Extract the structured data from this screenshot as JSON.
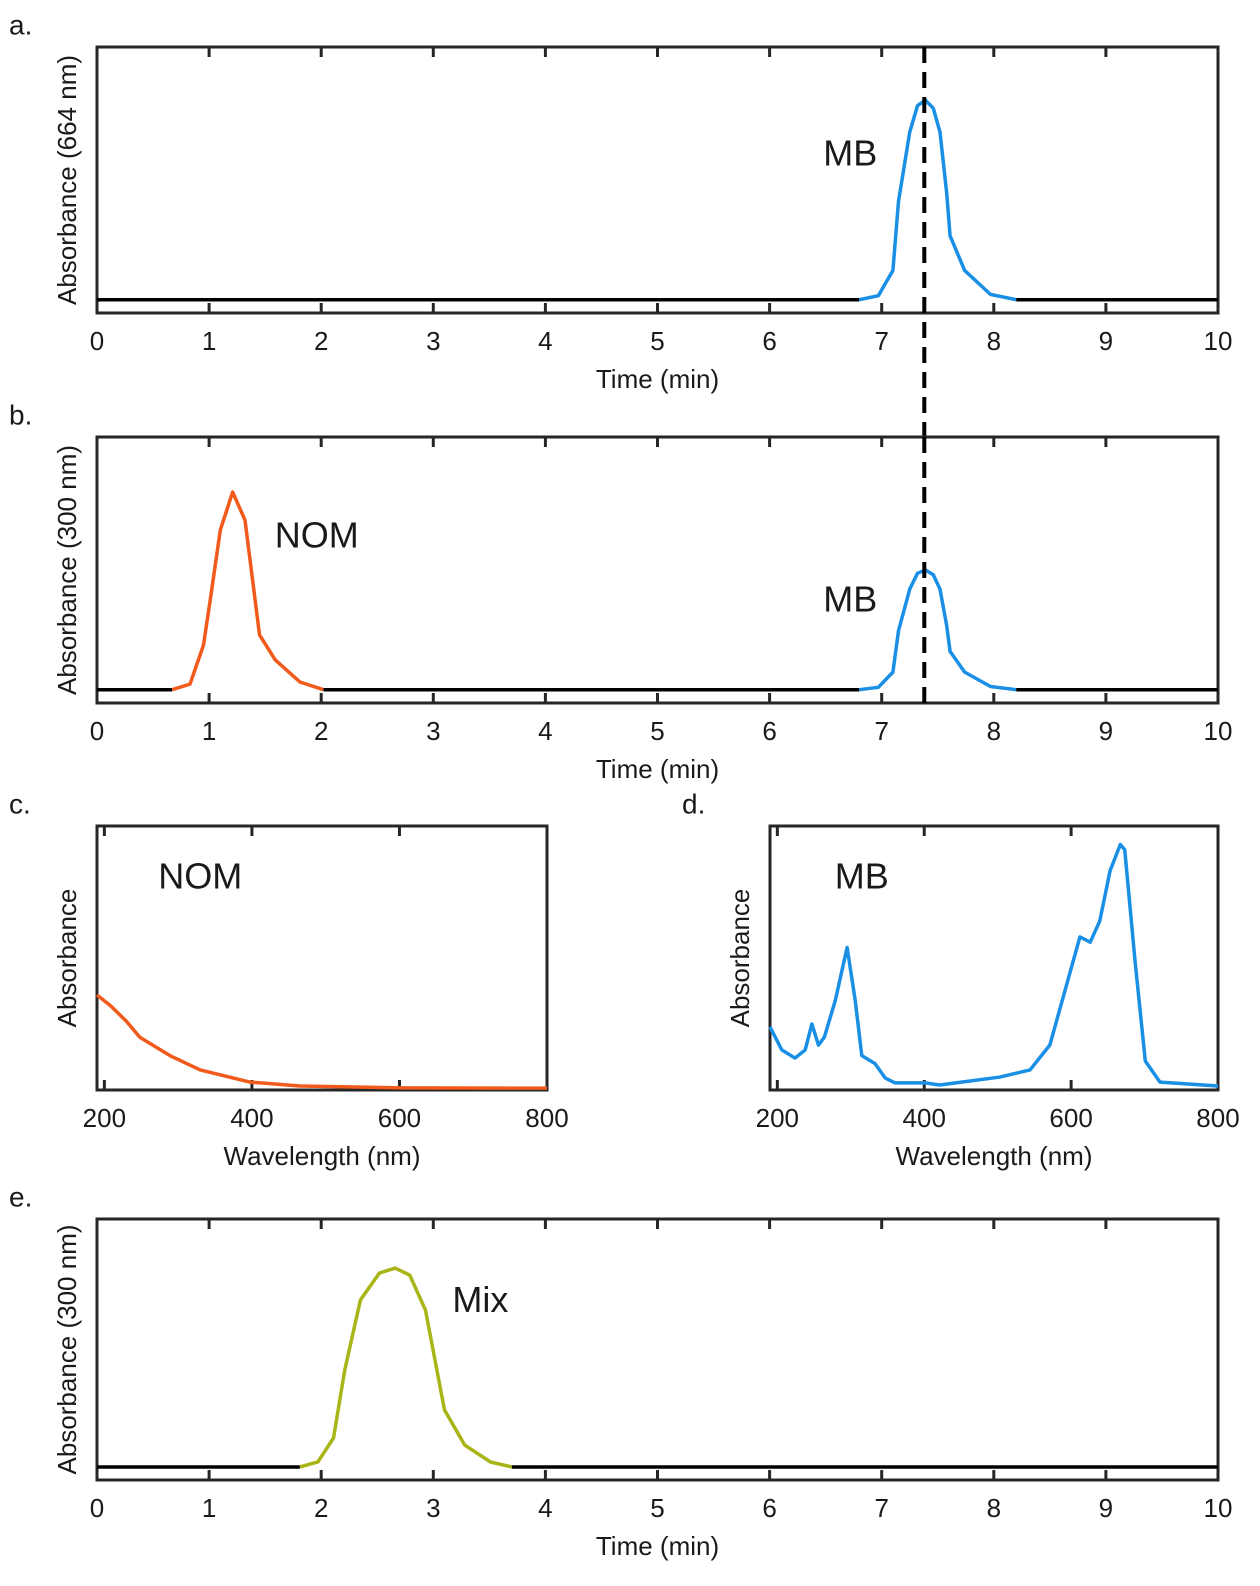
{
  "chart_data": [
    {
      "type": "line",
      "label": "a.",
      "xlabel": "Time (min)",
      "ylabel": "Absorbance (664 nm)",
      "xlim": [
        0,
        10
      ],
      "ylim": [
        0,
        1
      ],
      "xticks": [
        0,
        1,
        2,
        3,
        4,
        5,
        6,
        7,
        8,
        9,
        10
      ],
      "vline": 7.38,
      "series": [
        {
          "color": "#000000",
          "x": [
            0,
            6.8
          ],
          "values": [
            0.05,
            0.05
          ]
        },
        {
          "color": "#1a8fe6",
          "x": [
            6.8,
            6.97,
            7.1,
            7.15,
            7.25,
            7.32,
            7.39,
            7.46,
            7.52,
            7.58,
            7.61,
            7.74,
            7.97,
            8.2
          ],
          "values": [
            0.05,
            0.065,
            0.16,
            0.42,
            0.68,
            0.78,
            0.8,
            0.77,
            0.68,
            0.45,
            0.29,
            0.16,
            0.07,
            0.05
          ]
        },
        {
          "color": "#000000",
          "x": [
            8.2,
            10
          ],
          "values": [
            0.05,
            0.05
          ]
        }
      ],
      "annotations": [
        {
          "text": "MB",
          "x": 6.72,
          "y": 0.59
        }
      ]
    },
    {
      "type": "line",
      "label": "b.",
      "xlabel": "Time (min)",
      "ylabel": "Absorbance (300 nm)",
      "xlim": [
        0,
        10
      ],
      "ylim": [
        0,
        1
      ],
      "xticks": [
        0,
        1,
        2,
        3,
        4,
        5,
        6,
        7,
        8,
        9,
        10
      ],
      "vline": 7.38,
      "series": [
        {
          "color": "#000000",
          "x": [
            0,
            0.67
          ],
          "values": [
            0.05,
            0.05
          ]
        },
        {
          "color": "#f25a1c",
          "x": [
            0.67,
            0.83,
            0.95,
            1.01,
            1.1,
            1.21,
            1.32,
            1.45,
            1.59,
            1.81,
            2.02
          ],
          "values": [
            0.05,
            0.071,
            0.218,
            0.387,
            0.65,
            0.793,
            0.688,
            0.256,
            0.162,
            0.079,
            0.05
          ]
        },
        {
          "color": "#000000",
          "x": [
            2.02,
            6.8
          ],
          "values": [
            0.05,
            0.05
          ]
        },
        {
          "color": "#1a8fe6",
          "x": [
            6.8,
            6.97,
            7.1,
            7.15,
            7.25,
            7.32,
            7.39,
            7.46,
            7.52,
            7.58,
            7.61,
            7.74,
            7.97,
            8.2
          ],
          "values": [
            0.05,
            0.059,
            0.116,
            0.272,
            0.428,
            0.488,
            0.5,
            0.482,
            0.428,
            0.29,
            0.194,
            0.116,
            0.062,
            0.05
          ]
        },
        {
          "color": "#000000",
          "x": [
            8.2,
            10
          ],
          "values": [
            0.05,
            0.05
          ]
        }
      ],
      "annotations": [
        {
          "text": "NOM",
          "x": 1.96,
          "y": 0.62
        },
        {
          "text": "MB",
          "x": 6.72,
          "y": 0.38
        }
      ]
    },
    {
      "type": "line",
      "label": "c.",
      "xlabel": "Wavelength (nm)",
      "ylabel": "Absorbance",
      "xlim": [
        190,
        800
      ],
      "ylim": [
        0,
        1
      ],
      "xticks": [
        200,
        400,
        600,
        800
      ],
      "series": [
        {
          "color": "#f25a1c",
          "x": [
            190,
            208,
            230,
            248,
            289,
            330,
            397,
            465,
            601,
            800
          ],
          "values": [
            0.36,
            0.32,
            0.26,
            0.2,
            0.13,
            0.076,
            0.03,
            0.015,
            0.008,
            0.007
          ]
        }
      ],
      "annotations": [
        {
          "text": "NOM",
          "x": 330,
          "y": 0.8
        }
      ]
    },
    {
      "type": "line",
      "label": "d.",
      "xlabel": "Wavelength (nm)",
      "ylabel": "Absorbance",
      "xlim": [
        190,
        800
      ],
      "ylim": [
        0,
        1
      ],
      "xticks": [
        200,
        400,
        600,
        800
      ],
      "series": [
        {
          "color": "#1a8fe6",
          "x": [
            190,
            206,
            224,
            238,
            247,
            256,
            264,
            279,
            295,
            306,
            315,
            333,
            347,
            360,
            401,
            421,
            503,
            544,
            571,
            592,
            612,
            626,
            639,
            653,
            667,
            673,
            687,
            701,
            721,
            800
          ],
          "values": [
            0.239,
            0.152,
            0.121,
            0.152,
            0.25,
            0.17,
            0.2,
            0.34,
            0.54,
            0.34,
            0.13,
            0.1,
            0.045,
            0.027,
            0.027,
            0.019,
            0.049,
            0.076,
            0.17,
            0.38,
            0.58,
            0.56,
            0.64,
            0.83,
            0.93,
            0.91,
            0.49,
            0.11,
            0.03,
            0.015
          ]
        }
      ],
      "annotations": [
        {
          "text": "MB",
          "x": 315,
          "y": 0.8
        }
      ]
    },
    {
      "type": "line",
      "label": "e.",
      "xlabel": "Time (min)",
      "ylabel": "Absorbance (300 nm)",
      "xlim": [
        0,
        10
      ],
      "ylim": [
        0,
        1
      ],
      "xticks": [
        0,
        1,
        2,
        3,
        4,
        5,
        6,
        7,
        8,
        9,
        10
      ],
      "series": [
        {
          "color": "#000000",
          "x": [
            0,
            1.81
          ],
          "values": [
            0.05,
            0.05
          ]
        },
        {
          "color": "#a9b417",
          "x": [
            1.81,
            1.97,
            2.11,
            2.21,
            2.35,
            2.52,
            2.66,
            2.79,
            2.93,
            3.1,
            3.28,
            3.51,
            3.7
          ],
          "values": [
            0.05,
            0.069,
            0.161,
            0.421,
            0.69,
            0.793,
            0.812,
            0.785,
            0.651,
            0.268,
            0.134,
            0.069,
            0.05
          ]
        },
        {
          "color": "#000000",
          "x": [
            3.7,
            10
          ],
          "values": [
            0.05,
            0.05
          ]
        }
      ],
      "annotations": [
        {
          "text": "Mix",
          "x": 3.42,
          "y": 0.68
        }
      ]
    }
  ]
}
